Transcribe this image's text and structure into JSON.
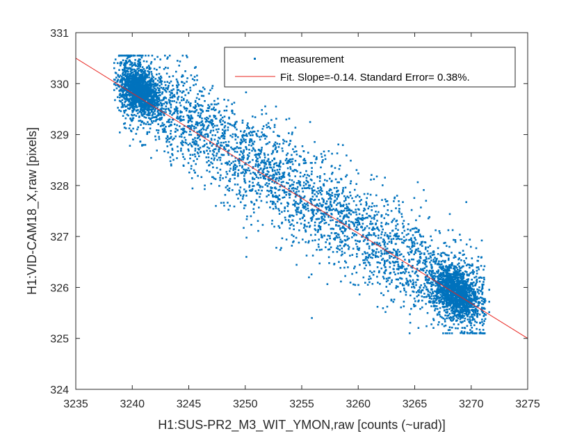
{
  "chart_data": {
    "type": "scatter",
    "xlabel": "H1:SUS-PR2_M3_WIT_YMON,raw [counts (~urad)]",
    "ylabel": "H1:VID-CAM18_X,raw [pixels]",
    "xlim": [
      3235,
      3275
    ],
    "ylim": [
      324,
      331
    ],
    "xticks": [
      3235,
      3240,
      3245,
      3250,
      3255,
      3260,
      3265,
      3270,
      3275
    ],
    "yticks": [
      324,
      325,
      326,
      327,
      328,
      329,
      330,
      331
    ],
    "grid": false,
    "legend_position": "top-right",
    "series": [
      {
        "name": "measurement",
        "kind": "scatter",
        "color": "#0072BD",
        "point_count": 6000,
        "clusters": [
          {
            "center": [
              3240.7,
              329.85
            ],
            "spread": [
              0.9,
              0.22
            ]
          },
          {
            "center": [
              3268.6,
              325.9
            ],
            "spread": [
              1.0,
              0.24
            ]
          }
        ],
        "band": {
          "x_range": [
            3238.8,
            3271.2
          ],
          "center_line": {
            "slope": -0.14,
            "x0": 3240.7,
            "y0": 329.85
          },
          "y_spread": 0.5
        },
        "sample_points": [
          [
            3239.3,
            330.4
          ],
          [
            3240.0,
            330.1
          ],
          [
            3241.2,
            329.9
          ],
          [
            3242.5,
            329.5
          ],
          [
            3244.3,
            329.3
          ],
          [
            3246.0,
            328.9
          ],
          [
            3248.1,
            328.6
          ],
          [
            3250.2,
            328.3
          ],
          [
            3252.3,
            327.9
          ],
          [
            3254.4,
            327.6
          ],
          [
            3256.5,
            327.2
          ],
          [
            3258.6,
            326.9
          ],
          [
            3260.7,
            326.6
          ],
          [
            3262.8,
            326.4
          ],
          [
            3264.9,
            326.1
          ],
          [
            3267.0,
            325.8
          ],
          [
            3268.8,
            325.7
          ],
          [
            3270.4,
            325.5
          ],
          [
            3271.0,
            325.9
          ],
          [
            3247.4,
            327.6
          ],
          [
            3255.9,
            325.4
          ],
          [
            3266.0,
            327.7
          ],
          [
            3254.1,
            328.6
          ],
          [
            3250.1,
            326.6
          ]
        ]
      },
      {
        "name": "Fit.  Slope=-0.14. Standard Error= 0.38%.",
        "kind": "line",
        "color": "#E8231E",
        "points": [
          [
            3235,
            330.5
          ],
          [
            3275,
            325.0
          ]
        ]
      }
    ]
  }
}
